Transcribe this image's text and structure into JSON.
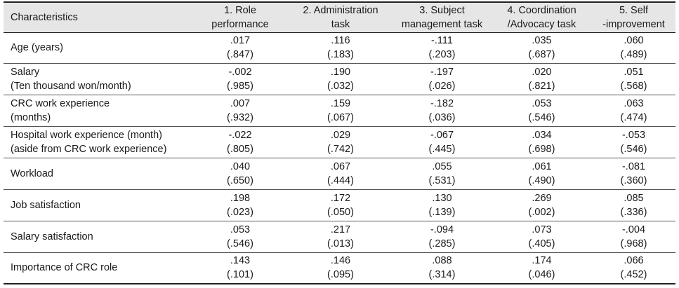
{
  "header": {
    "characteristics": "Characteristics",
    "columns": [
      {
        "line1": "1. Role",
        "line2": "performance"
      },
      {
        "line1": "2. Administration",
        "line2": "task"
      },
      {
        "line1": "3. Subject",
        "line2": "management task"
      },
      {
        "line1": "4. Coordination",
        "line2": "/Advocacy task"
      },
      {
        "line1": "5. Self",
        "line2": "-improvement"
      }
    ]
  },
  "rows": [
    {
      "label1": "Age (years)",
      "label2": "",
      "cells": [
        {
          "r": ".017",
          "p": "(.847)"
        },
        {
          "r": ".116",
          "p": "(.183)"
        },
        {
          "r": "-.111",
          "p": "(.203)"
        },
        {
          "r": ".035",
          "p": "(.687)"
        },
        {
          "r": ".060",
          "p": "(.489)"
        }
      ]
    },
    {
      "label1": "Salary",
      "label2": "(Ten thousand won/month)",
      "cells": [
        {
          "r": "-.002",
          "p": "(.985)"
        },
        {
          "r": ".190",
          "p": "(.032)"
        },
        {
          "r": "-.197",
          "p": "(.026)"
        },
        {
          "r": ".020",
          "p": "(.821)"
        },
        {
          "r": ".051",
          "p": "(.568)"
        }
      ]
    },
    {
      "label1": "CRC work experience",
      "label2": "(months)",
      "cells": [
        {
          "r": ".007",
          "p": "(.932)"
        },
        {
          "r": ".159",
          "p": "(.067)"
        },
        {
          "r": "-.182",
          "p": "(.036)"
        },
        {
          "r": ".053",
          "p": "(.546)"
        },
        {
          "r": ".063",
          "p": "(.474)"
        }
      ]
    },
    {
      "label1": "Hospital work experience (month)",
      "label2": "(aside from CRC work experience)",
      "cells": [
        {
          "r": "-.022",
          "p": "(.805)"
        },
        {
          "r": ".029",
          "p": "(.742)"
        },
        {
          "r": "-.067",
          "p": "(.445)"
        },
        {
          "r": ".034",
          "p": "(.698)"
        },
        {
          "r": "-.053",
          "p": "(.546)"
        }
      ]
    },
    {
      "label1": "Workload",
      "label2": "",
      "cells": [
        {
          "r": ".040",
          "p": "(.650)"
        },
        {
          "r": ".067",
          "p": "(.444)"
        },
        {
          "r": ".055",
          "p": "(.531)"
        },
        {
          "r": ".061",
          "p": "(.490)"
        },
        {
          "r": "-.081",
          "p": "(.360)"
        }
      ]
    },
    {
      "label1": "Job satisfaction",
      "label2": "",
      "cells": [
        {
          "r": ".198",
          "p": "(.023)"
        },
        {
          "r": ".172",
          "p": "(.050)"
        },
        {
          "r": ".130",
          "p": "(.139)"
        },
        {
          "r": ".269",
          "p": "(.002)"
        },
        {
          "r": ".085",
          "p": "(.336)"
        }
      ]
    },
    {
      "label1": "Salary satisfaction",
      "label2": "",
      "cells": [
        {
          "r": ".053",
          "p": "(.546)"
        },
        {
          "r": ".217",
          "p": "(.013)"
        },
        {
          "r": "-.094",
          "p": "(.285)"
        },
        {
          "r": ".073",
          "p": "(.405)"
        },
        {
          "r": "-.004",
          "p": "(.968)"
        }
      ]
    },
    {
      "label1": "Importance of CRC role",
      "label2": "",
      "cells": [
        {
          "r": ".143",
          "p": "(.101)"
        },
        {
          "r": ".146",
          "p": "(.095)"
        },
        {
          "r": ".088",
          "p": "(.314)"
        },
        {
          "r": ".174",
          "p": "(.046)"
        },
        {
          "r": ".066",
          "p": "(.452)"
        }
      ]
    }
  ]
}
